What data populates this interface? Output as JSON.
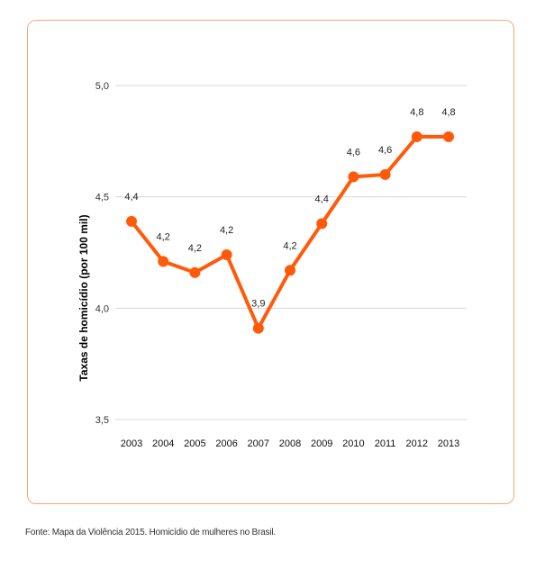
{
  "chart_data": {
    "type": "line",
    "title": "",
    "xlabel": "",
    "ylabel": "Taxas de homicídio (por 100 mil)",
    "x": [
      "2003",
      "2004",
      "2005",
      "2006",
      "2007",
      "2008",
      "2009",
      "2010",
      "2011",
      "2012",
      "2013"
    ],
    "series": [
      {
        "values": [
          4.39,
          4.21,
          4.16,
          4.24,
          3.91,
          4.17,
          4.38,
          4.59,
          4.6,
          4.77,
          4.77
        ]
      }
    ],
    "data_labels": [
      "4,4",
      "4,2",
      "4,2",
      "4,2",
      "3,9",
      "4,2",
      "4,4",
      "4,6",
      "4,6",
      "4,8",
      "4,8"
    ],
    "ylim": [
      3.5,
      5.0
    ],
    "yticks": [
      3.5,
      4.0,
      4.5,
      5.0
    ],
    "ytick_labels": [
      "3,5",
      "4,0",
      "4,5",
      "5,0"
    ],
    "grid": true,
    "legend": "none",
    "colors": {
      "line": "#ff5a0a",
      "grid": "#d9d9d9",
      "frame": "#f5a878"
    }
  },
  "source_text": "Fonte: Mapa da Violência 2015. Homicídio de mulheres no Brasil."
}
